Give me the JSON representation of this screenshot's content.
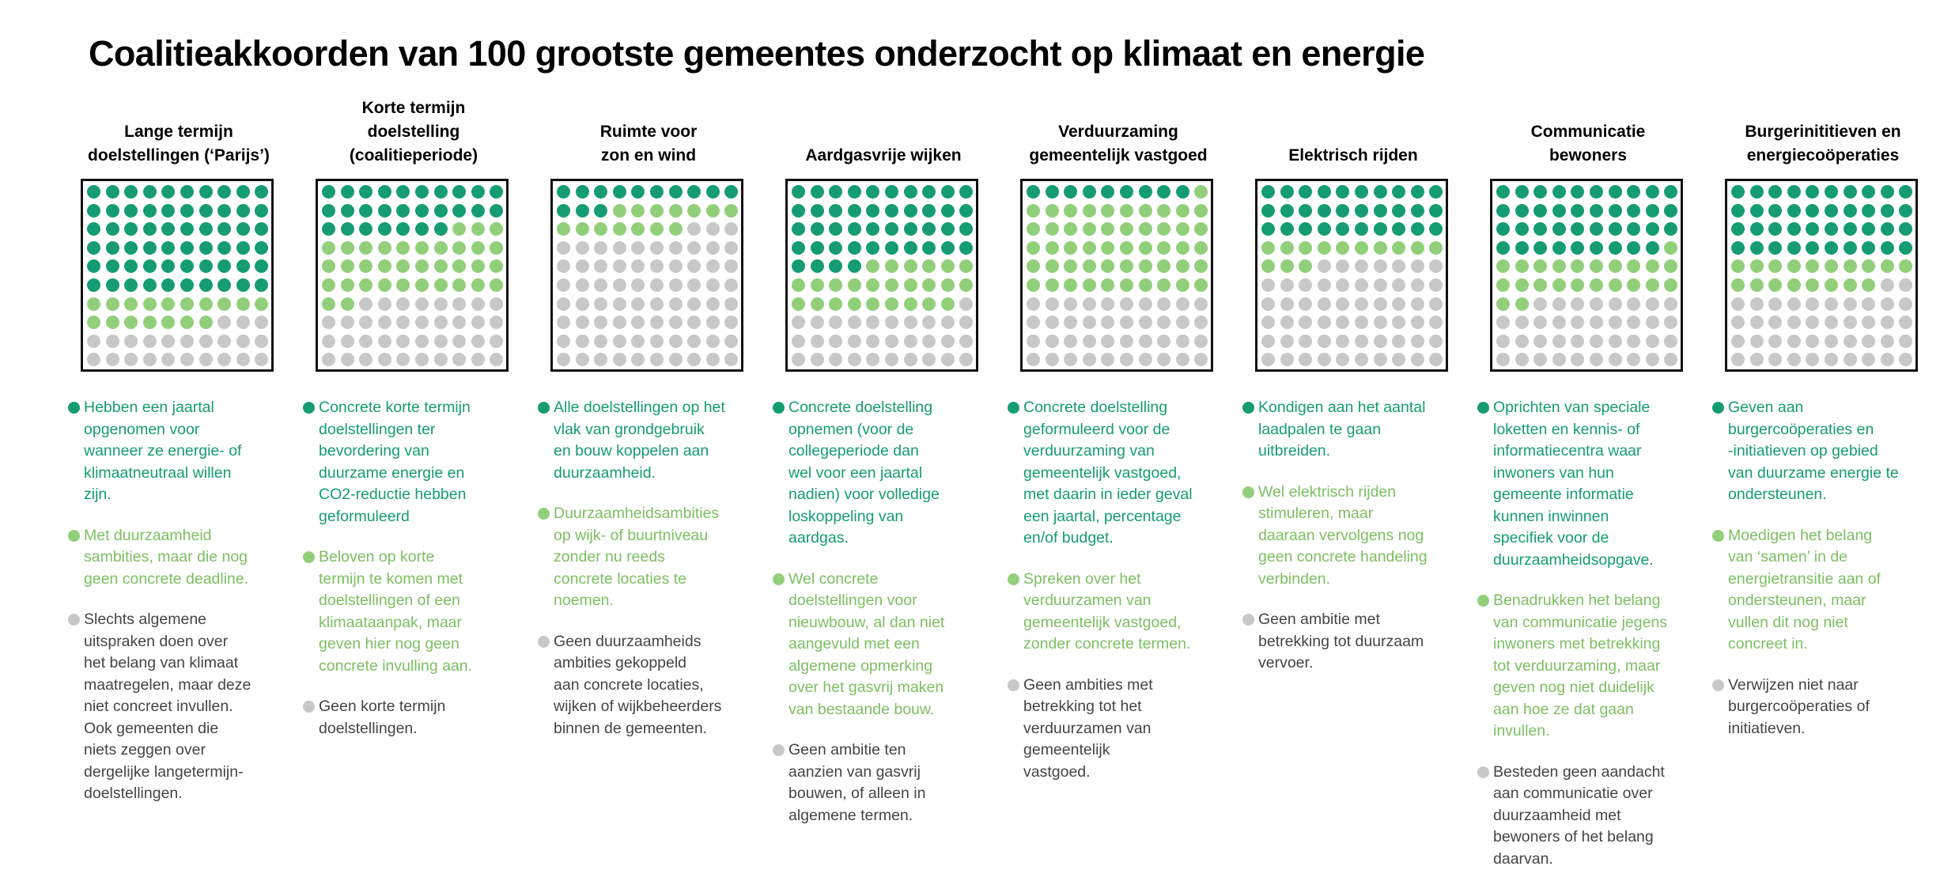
{
  "title": "Coalitieakkoorden van 100 grootste gemeentes onderzocht op klimaat en energie",
  "colors": {
    "dark": "#159c73",
    "light": "#92cf7a",
    "grey": "#c8c8c8",
    "text_dark": "#159c73",
    "text_light": "#7cbf62",
    "text_grey": "#444444"
  },
  "chart_data": {
    "type": "waffle",
    "units_per_chart": 100,
    "category_levels": [
      "dark",
      "light",
      "grey"
    ],
    "charts": [
      {
        "title": "Lange termijn\ndoelstellingen (‘Parijs’)",
        "counts": {
          "dark": 60,
          "light": 17,
          "grey": 23
        },
        "categories": [
          {
            "level": "dark",
            "text": "Hebben een jaartal\nopgenomen voor\nwanneer ze energie- of\nklimaatneutraal willen\nzijn."
          },
          {
            "level": "light",
            "text": "Met duurzaamheid\nsambities, maar die nog\ngeen concrete deadline."
          },
          {
            "level": "grey",
            "text": "Slechts algemene\nuitspraken doen over\nhet belang van klimaat\nmaatregelen, maar deze\nniet concreet invullen.\nOok gemeenten die\nniets zeggen over\ndergelijke langetermijn-\ndoelstellingen."
          }
        ]
      },
      {
        "title": "Korte termijn\ndoelstelling\n(coalitieperiode)",
        "counts": {
          "dark": 27,
          "light": 35,
          "grey": 38
        },
        "categories": [
          {
            "level": "dark",
            "text": "Concrete korte termijn\ndoelstellingen ter\nbevordering van\nduurzame energie en\nCO2-reductie hebben\ngeformuleerd"
          },
          {
            "level": "light",
            "text": "Beloven op korte\ntermijn te komen met\ndoelstellingen of een\nklimaataanpak, maar\ngeven hier nog geen\nconcrete invulling aan."
          },
          {
            "level": "grey",
            "text": "Geen korte termijn\ndoelstellingen."
          }
        ]
      },
      {
        "title": "Ruimte voor\nzon en wind",
        "counts": {
          "dark": 13,
          "light": 14,
          "grey": 73
        },
        "categories": [
          {
            "level": "dark",
            "text": "Alle doelstellingen op het\nvlak van grondgebruik\nen bouw koppelen aan\nduurzaamheid."
          },
          {
            "level": "light",
            "text": "Duurzaamheidsambities\nop wijk- of buurtniveau\nzonder nu reeds\nconcrete locaties te\nnoemen."
          },
          {
            "level": "grey",
            "text": "Geen duurzaamheids\nambities gekoppeld\naan concrete locaties,\nwijken of wijkbeheerders\nbinnen de gemeenten."
          }
        ]
      },
      {
        "title": "Aardgasvrije wijken",
        "counts": {
          "dark": 44,
          "light": 25,
          "grey": 31
        },
        "categories": [
          {
            "level": "dark",
            "text": "Concrete doelstelling\nopnemen (voor de\ncollegeperiode dan\nwel voor een jaartal\nnadien) voor volledige\nloskoppeling van\naardgas."
          },
          {
            "level": "light",
            "text": "Wel concrete\ndoelstellingen voor\nnieuwbouw, al dan niet\naangevuld met een\nalgemene opmerking\nover het gasvrij maken\nvan bestaande bouw."
          },
          {
            "level": "grey",
            "text": "Geen ambitie ten\naanzien van gasvrij\nbouwen, of alleen in\nalgemene termen."
          }
        ]
      },
      {
        "title": "Verduurzaming\ngemeentelijk vastgoed",
        "counts": {
          "dark": 9,
          "light": 51,
          "grey": 40
        },
        "categories": [
          {
            "level": "dark",
            "text": "Concrete doelstelling\ngeformuleerd voor de\nverduurzaming van\ngemeentelijk vastgoed,\nmet daarin in ieder geval\neen jaartal, percentage\nen/of budget."
          },
          {
            "level": "light",
            "text": "Spreken over het\nverduurzamen van\ngemeentelijk vastgoed,\nzonder concrete termen."
          },
          {
            "level": "grey",
            "text": "Geen ambities met\nbetrekking tot het\nverduurzamen van\ngemeentelijk\nvastgoed."
          }
        ]
      },
      {
        "title": "Elektrisch rijden",
        "counts": {
          "dark": 30,
          "light": 13,
          "grey": 57
        },
        "categories": [
          {
            "level": "dark",
            "text": "Kondigen aan het aantal\nlaadpalen te gaan\nuitbreiden."
          },
          {
            "level": "light",
            "text": "Wel elektrisch rijden\nstimuleren, maar\ndaaraan vervolgens nog\ngeen concrete handeling\nverbinden."
          },
          {
            "level": "grey",
            "text": "Geen ambitie met\nbetrekking tot duurzaam\nvervoer."
          }
        ]
      },
      {
        "title": "Communicatie\nbewoners",
        "counts": {
          "dark": 39,
          "light": 23,
          "grey": 38
        },
        "categories": [
          {
            "level": "dark",
            "text": "Oprichten van speciale\nloketten en kennis- of\ninformatiecentra waar\ninwoners van hun\ngemeente informatie\nkunnen inwinnen\nspecifiek voor de\nduurzaamheidsopgave."
          },
          {
            "level": "light",
            "text": "Benadrukken het belang\nvan communicatie jegens\ninwoners met betrekking\ntot verduurzaming, maar\ngeven nog niet duidelijk\naan hoe ze dat gaan\ninvullen."
          },
          {
            "level": "grey",
            "text": "Besteden geen aandacht\naan communicatie over\nduurzaamheid met\nbewoners of het belang\ndaarvan."
          }
        ]
      },
      {
        "title": "Burgerinititieven en\nenergiecoöperaties",
        "counts": {
          "dark": 40,
          "light": 18,
          "grey": 42
        },
        "categories": [
          {
            "level": "dark",
            "text": "Geven aan\nburgercoöperaties en\n-initiatieven op gebied\nvan duurzame energie te\nondersteunen."
          },
          {
            "level": "light",
            "text": "Moedigen het belang\nvan ‘samen’ in de\nenergietransitie aan of\nondersteunen, maar\nvullen dit nog niet\nconcreet in."
          },
          {
            "level": "grey",
            "text": "Verwijzen niet naar\nburgercoöperaties of\ninitiatieven."
          }
        ]
      }
    ]
  }
}
